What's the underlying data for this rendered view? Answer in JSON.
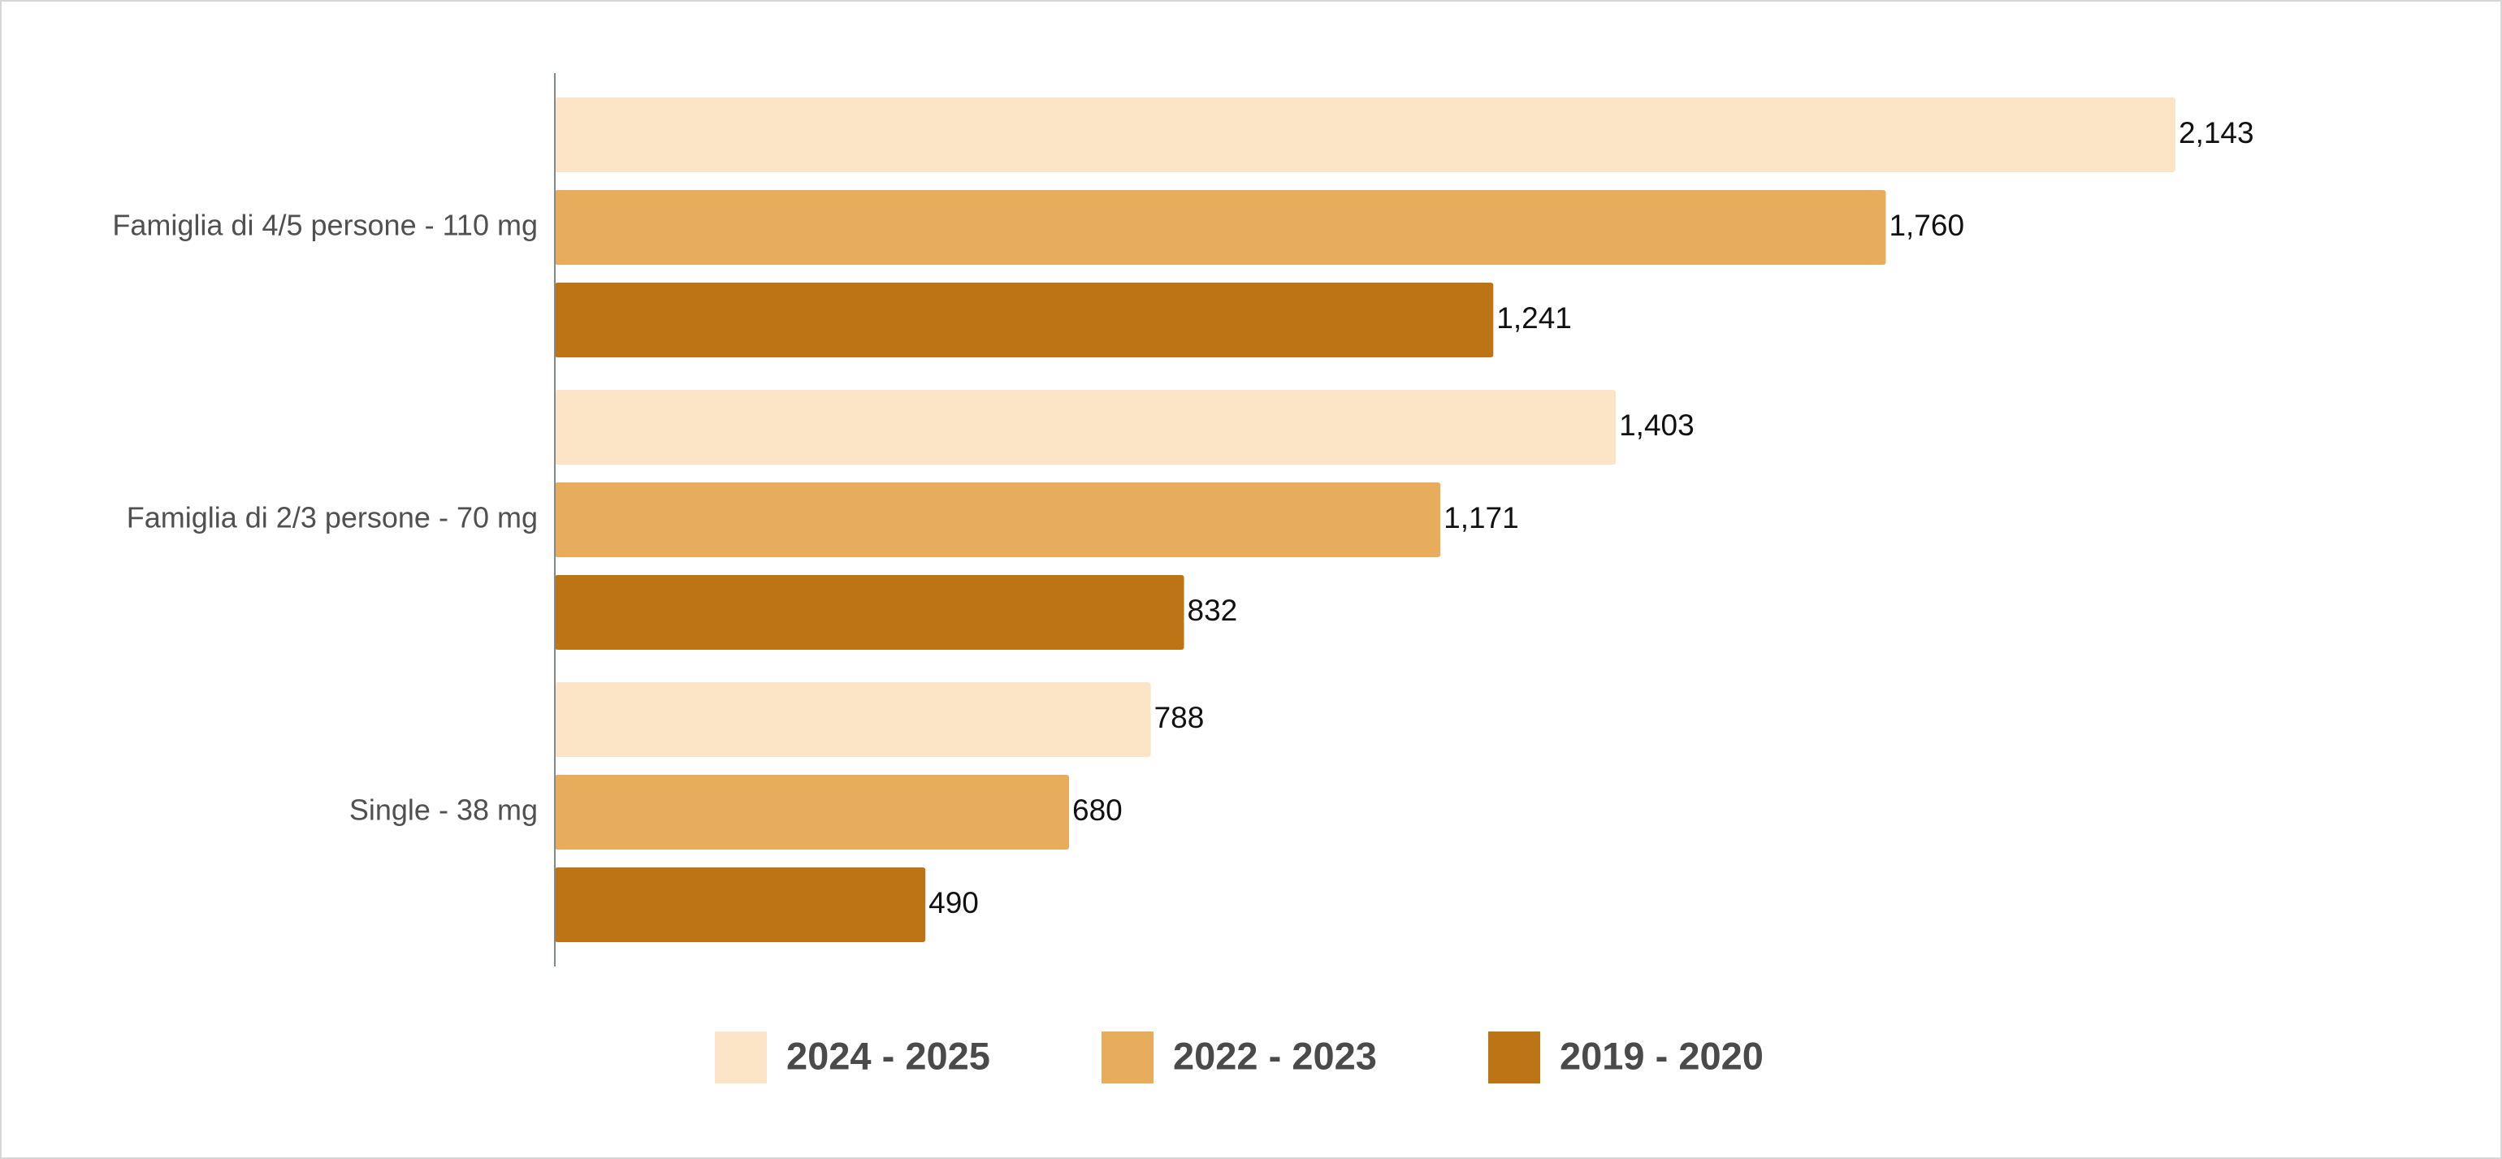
{
  "chart_data": {
    "type": "bar",
    "orientation": "horizontal",
    "categories": [
      "Famiglia di 4/5 persone - 110 mg",
      "Famiglia di 2/3 persone - 70 mg",
      "Single - 38 mg"
    ],
    "series": [
      {
        "name": "2024 - 2025",
        "color": "#fce5c6",
        "values": [
          2143,
          1403,
          788
        ],
        "labels": [
          "2,143",
          "1,403",
          "788"
        ]
      },
      {
        "name": "2022 - 2023",
        "color": "#e7ad5d",
        "values": [
          1760,
          1171,
          680
        ],
        "labels": [
          "1,760",
          "1,171",
          "680"
        ]
      },
      {
        "name": "2019 - 2020",
        "color": "#bc7414",
        "values": [
          1241,
          832,
          490
        ],
        "labels": [
          "1,241",
          "832",
          "490"
        ]
      }
    ],
    "xlim": [
      0,
      2143
    ],
    "grid": false,
    "legend_position": "bottom"
  }
}
